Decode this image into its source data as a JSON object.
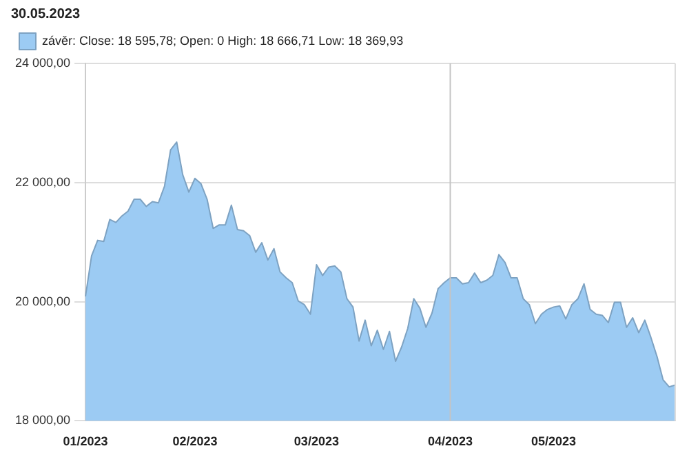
{
  "chart_data": {
    "type": "area",
    "title": "30.05.2023",
    "categories": [
      "01/2023",
      null,
      null,
      null,
      null,
      null,
      null,
      null,
      null,
      null,
      null,
      null,
      null,
      null,
      null,
      null,
      null,
      null,
      "02/2023",
      null,
      null,
      null,
      null,
      null,
      null,
      null,
      null,
      null,
      null,
      null,
      null,
      null,
      null,
      null,
      null,
      null,
      null,
      null,
      "03/2023",
      null,
      null,
      null,
      null,
      null,
      null,
      null,
      null,
      null,
      null,
      null,
      null,
      null,
      null,
      null,
      null,
      null,
      null,
      null,
      null,
      null,
      "04/2023",
      null,
      null,
      null,
      null,
      null,
      null,
      null,
      null,
      null,
      null,
      null,
      null,
      null,
      null,
      null,
      null,
      "05/2023",
      null,
      null,
      null,
      null,
      null,
      null,
      null,
      null,
      null,
      null,
      null,
      null,
      null,
      null,
      null,
      null,
      null,
      null,
      null,
      null
    ],
    "series": [
      {
        "name": "závěr: Close: 18 595,78; Open: 0 High: 18 666,71 Low: 18 369,93",
        "color": "#9ccbf3",
        "values": [
          20090,
          20770,
          21030,
          21010,
          21380,
          21330,
          21440,
          21520,
          21720,
          21720,
          21600,
          21680,
          21660,
          21940,
          22550,
          22680,
          22130,
          21840,
          22070,
          21980,
          21720,
          21230,
          21290,
          21290,
          21620,
          21210,
          21190,
          21110,
          20830,
          20990,
          20700,
          20890,
          20500,
          20400,
          20320,
          20010,
          19950,
          19790,
          20620,
          20440,
          20580,
          20600,
          20500,
          20050,
          19910,
          19340,
          19690,
          19260,
          19520,
          19200,
          19500,
          19000,
          19240,
          19550,
          20050,
          19890,
          19570,
          19810,
          20220,
          20320,
          20400,
          20400,
          20300,
          20320,
          20480,
          20320,
          20360,
          20440,
          20790,
          20660,
          20400,
          20400,
          20050,
          19950,
          19630,
          19790,
          19870,
          19910,
          19930,
          19710,
          19950,
          20050,
          20300,
          19870,
          19790,
          19770,
          19650,
          19990,
          19990,
          19570,
          19730,
          19480,
          19690,
          19400,
          19080,
          18690,
          18570,
          18600
        ]
      }
    ],
    "ylim": [
      18000,
      24000
    ],
    "yticks": [
      {
        "value": 18000,
        "label": "18 000,00"
      },
      {
        "value": 20000,
        "label": "20 000,00"
      },
      {
        "value": 22000,
        "label": "22 000,00"
      },
      {
        "value": 24000,
        "label": "24 000,00"
      }
    ],
    "grid": "y",
    "legend": "top left",
    "marker": "none",
    "ref_lines": [
      {
        "axis": "x",
        "value": "04/2023",
        "color": "#c4c4c4"
      }
    ]
  }
}
